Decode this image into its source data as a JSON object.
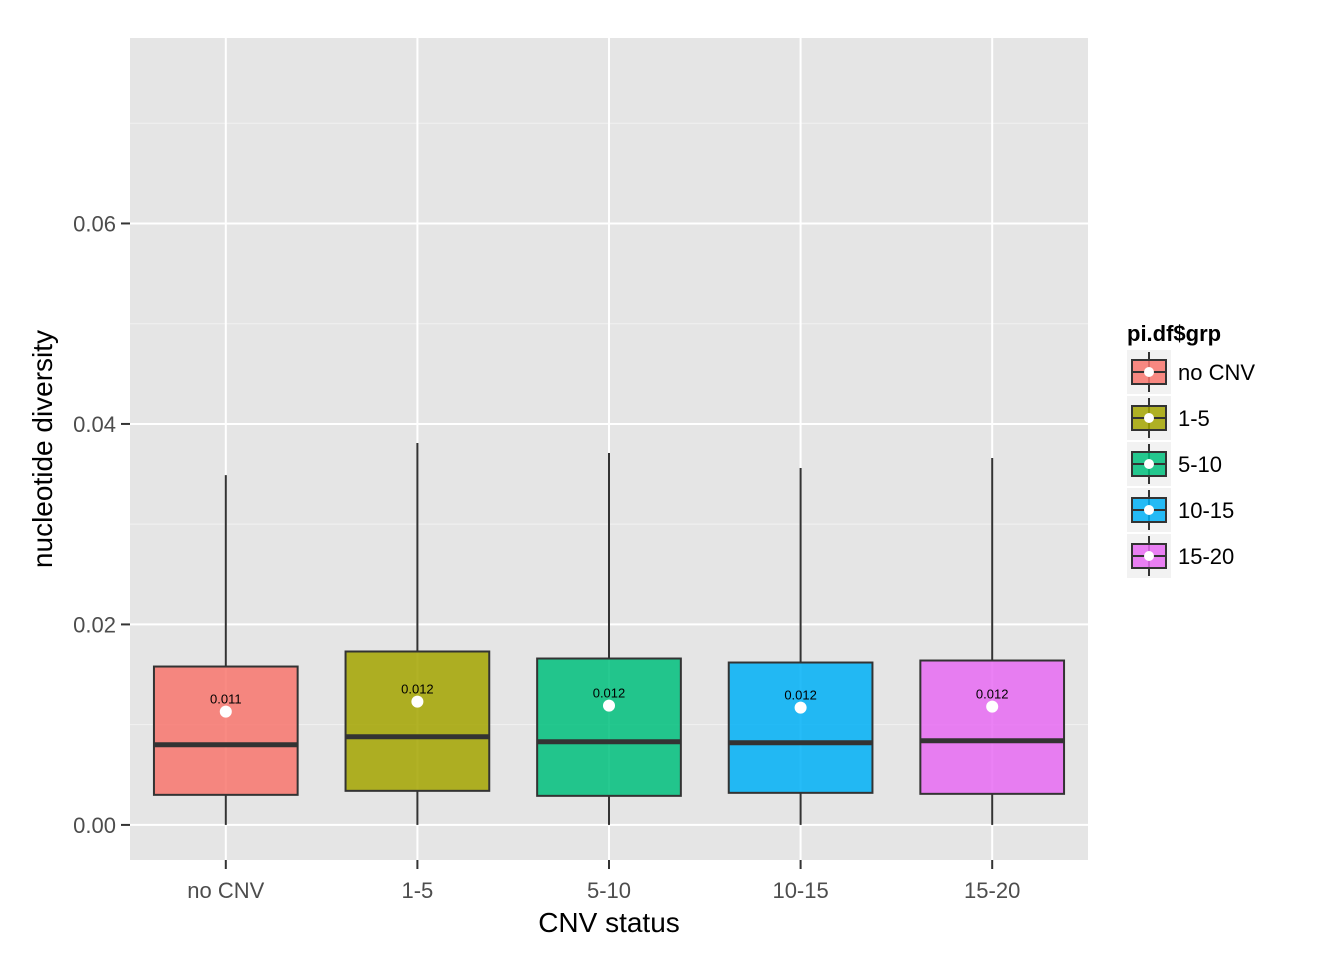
{
  "chart_data": {
    "type": "box",
    "title": "",
    "xlabel": "CNV status",
    "ylabel": "nucleotide diversity",
    "categories": [
      "no CNV",
      "1-5",
      "5-10",
      "10-15",
      "15-20"
    ],
    "ylim": [
      -0.0035,
      0.0785
    ],
    "yticks": [
      0.0,
      0.02,
      0.04,
      0.06
    ],
    "ytick_labels": [
      "0.00",
      "0.02",
      "0.04",
      "0.06"
    ],
    "grid": true,
    "legend": {
      "title": "pi.df$grp",
      "position": "right",
      "entries": [
        "no CNV",
        "1-5",
        "5-10",
        "10-15",
        "15-20"
      ]
    },
    "series": [
      {
        "name": "no CNV",
        "color": "#F8766D",
        "min": 0.0,
        "q1": 0.003,
        "median": 0.008,
        "q3": 0.0158,
        "max": 0.0349,
        "mean": 0.0113,
        "mean_label": "0.011"
      },
      {
        "name": "1-5",
        "color": "#A3A500",
        "min": 0.0,
        "q1": 0.0034,
        "median": 0.0088,
        "q3": 0.0173,
        "max": 0.0381,
        "mean": 0.0123,
        "mean_label": "0.012"
      },
      {
        "name": "5-10",
        "color": "#00BF7D",
        "min": 0.0,
        "q1": 0.0029,
        "median": 0.0083,
        "q3": 0.0166,
        "max": 0.0371,
        "mean": 0.0119,
        "mean_label": "0.012"
      },
      {
        "name": "10-15",
        "color": "#00B0F6",
        "min": 0.0,
        "q1": 0.0032,
        "median": 0.0082,
        "q3": 0.0162,
        "max": 0.0356,
        "mean": 0.0117,
        "mean_label": "0.012"
      },
      {
        "name": "15-20",
        "color": "#E76BF3",
        "min": 0.0,
        "q1": 0.0031,
        "median": 0.0084,
        "q3": 0.0164,
        "max": 0.0366,
        "mean": 0.0118,
        "mean_label": "0.012"
      }
    ]
  }
}
